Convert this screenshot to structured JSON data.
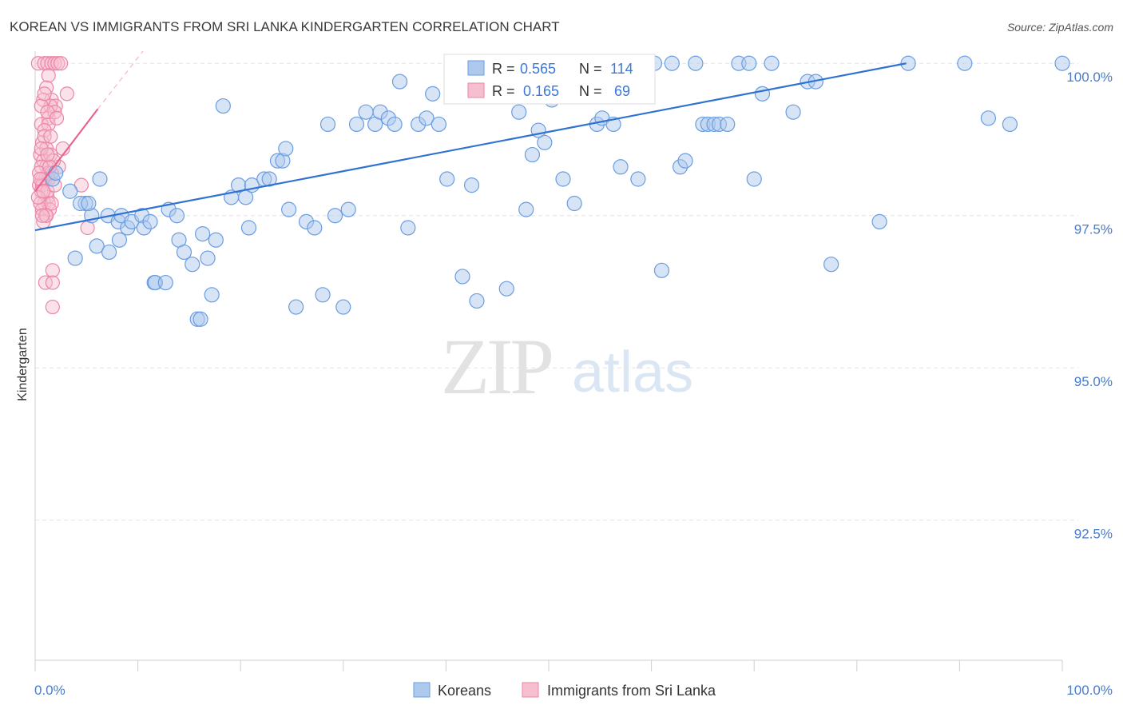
{
  "header": {
    "title": "KOREAN VS IMMIGRANTS FROM SRI LANKA KINDERGARTEN CORRELATION CHART",
    "source": "Source: ZipAtlas.com"
  },
  "watermark": {
    "zip": "ZIP",
    "atlas": "atlas"
  },
  "stats": {
    "r_label": "R =",
    "n_label": "N =",
    "koreans": {
      "r": "0.565",
      "n": "114"
    },
    "srilanka": {
      "r": "0.165",
      "n": "69"
    }
  },
  "legend": {
    "koreans": "Koreans",
    "srilanka": "Immigrants from Sri Lanka"
  },
  "colors": {
    "koreans_fill": "#aec9ee",
    "koreans_stroke": "#6b9de0",
    "koreans_line": "#2f72d2",
    "srilanka_fill": "#f6bfd0",
    "srilanka_stroke": "#ec86a6",
    "srilanka_line": "#e8648e",
    "tick_text": "#4a7cc7",
    "grid": "#e3e3e3"
  },
  "chart_data": {
    "type": "scatter",
    "ylabel": "Kindergarten",
    "xlim": [
      0,
      100
    ],
    "ylim": [
      90.2,
      100.2
    ],
    "y_ticks": [
      {
        "value": 100.0,
        "label": "100.0%"
      },
      {
        "value": 97.5,
        "label": "97.5%"
      },
      {
        "value": 95.0,
        "label": "95.0%"
      },
      {
        "value": 92.5,
        "label": "92.5%"
      }
    ],
    "x_ticks": [
      {
        "value": 0,
        "label": "0.0%"
      },
      {
        "value": 100,
        "label": "100.0%"
      }
    ],
    "x_minor_ticks": [
      0,
      10,
      20,
      30,
      40,
      50,
      60,
      70,
      80,
      90,
      100
    ],
    "series": [
      {
        "name": "Koreans",
        "trend": {
          "x": [
            0,
            84.8
          ],
          "y": [
            97.26,
            100.0
          ]
        },
        "points": [
          [
            1.7,
            98.1
          ],
          [
            2.0,
            98.2
          ],
          [
            3.4,
            97.9
          ],
          [
            4.9,
            97.7
          ],
          [
            3.9,
            96.8
          ],
          [
            4.4,
            97.7
          ],
          [
            5.5,
            97.5
          ],
          [
            5.2,
            97.7
          ],
          [
            6.0,
            97.0
          ],
          [
            6.3,
            98.1
          ],
          [
            7.1,
            97.5
          ],
          [
            7.2,
            96.9
          ],
          [
            8.1,
            97.4
          ],
          [
            8.2,
            97.1
          ],
          [
            8.4,
            97.5
          ],
          [
            9.0,
            97.3
          ],
          [
            9.4,
            97.4
          ],
          [
            10.4,
            97.5
          ],
          [
            10.6,
            97.3
          ],
          [
            11.2,
            97.4
          ],
          [
            11.6,
            96.4
          ],
          [
            11.7,
            96.4
          ],
          [
            12.7,
            96.4
          ],
          [
            13.0,
            97.6
          ],
          [
            13.8,
            97.5
          ],
          [
            14.0,
            97.1
          ],
          [
            14.5,
            96.9
          ],
          [
            15.3,
            96.7
          ],
          [
            15.8,
            95.8
          ],
          [
            16.1,
            95.8
          ],
          [
            16.3,
            97.2
          ],
          [
            16.8,
            96.8
          ],
          [
            17.2,
            96.2
          ],
          [
            17.6,
            97.1
          ],
          [
            18.3,
            99.3
          ],
          [
            19.1,
            97.8
          ],
          [
            19.8,
            98.0
          ],
          [
            20.5,
            97.8
          ],
          [
            20.8,
            97.3
          ],
          [
            21.1,
            98.0
          ],
          [
            22.3,
            98.1
          ],
          [
            22.8,
            98.1
          ],
          [
            23.6,
            98.4
          ],
          [
            24.1,
            98.4
          ],
          [
            24.4,
            98.6
          ],
          [
            24.7,
            97.6
          ],
          [
            25.4,
            96.0
          ],
          [
            26.4,
            97.4
          ],
          [
            27.2,
            97.3
          ],
          [
            28.0,
            96.2
          ],
          [
            28.5,
            99.0
          ],
          [
            29.2,
            97.5
          ],
          [
            30.0,
            96.0
          ],
          [
            30.5,
            97.6
          ],
          [
            31.3,
            99.0
          ],
          [
            32.2,
            99.2
          ],
          [
            33.1,
            99.0
          ],
          [
            33.6,
            99.2
          ],
          [
            34.4,
            99.1
          ],
          [
            35.0,
            99.0
          ],
          [
            35.5,
            99.7
          ],
          [
            36.3,
            97.3
          ],
          [
            37.3,
            99.0
          ],
          [
            38.1,
            99.1
          ],
          [
            38.7,
            99.5
          ],
          [
            39.3,
            99.0
          ],
          [
            40.1,
            98.1
          ],
          [
            41.0,
            100.0
          ],
          [
            41.6,
            96.5
          ],
          [
            42.5,
            98.0
          ],
          [
            43.0,
            96.1
          ],
          [
            44.1,
            99.6
          ],
          [
            44.7,
            100.0
          ],
          [
            45.5,
            100.0
          ],
          [
            45.9,
            96.3
          ],
          [
            46.2,
            100.0
          ],
          [
            47.1,
            99.2
          ],
          [
            47.8,
            97.6
          ],
          [
            48.4,
            98.5
          ],
          [
            49.0,
            98.9
          ],
          [
            49.6,
            98.7
          ],
          [
            50.3,
            99.4
          ],
          [
            51.4,
            98.1
          ],
          [
            52.5,
            97.7
          ],
          [
            53.1,
            100.0
          ],
          [
            53.6,
            100.0
          ],
          [
            54.7,
            99.0
          ],
          [
            55.2,
            99.1
          ],
          [
            56.3,
            99.0
          ],
          [
            57.0,
            98.3
          ],
          [
            58.7,
            98.1
          ],
          [
            60.3,
            100.0
          ],
          [
            61.0,
            96.6
          ],
          [
            62.0,
            100.0
          ],
          [
            62.8,
            98.3
          ],
          [
            63.3,
            98.4
          ],
          [
            64.3,
            100.0
          ],
          [
            65.0,
            99.0
          ],
          [
            65.5,
            99.0
          ],
          [
            66.1,
            99.0
          ],
          [
            66.6,
            99.0
          ],
          [
            67.4,
            99.0
          ],
          [
            68.5,
            100.0
          ],
          [
            69.5,
            100.0
          ],
          [
            70.0,
            98.1
          ],
          [
            70.8,
            99.5
          ],
          [
            71.7,
            100.0
          ],
          [
            73.8,
            99.2
          ],
          [
            75.2,
            99.7
          ],
          [
            76.0,
            99.7
          ],
          [
            77.5,
            96.7
          ],
          [
            82.2,
            97.4
          ],
          [
            92.8,
            99.1
          ],
          [
            94.9,
            99.0
          ],
          [
            85.0,
            100.0
          ],
          [
            90.5,
            100.0
          ],
          [
            100.0,
            100.0
          ]
        ]
      },
      {
        "name": "Immigrants from Sri Lanka",
        "trend": {
          "x": [
            0,
            6.1
          ],
          "y": [
            97.9,
            99.25
          ]
        },
        "trend_ext": {
          "x": [
            6.1,
            10.5
          ],
          "y": [
            99.25,
            100.2
          ]
        },
        "points": [
          [
            0.3,
            100.0
          ],
          [
            0.9,
            100.0
          ],
          [
            1.2,
            100.0
          ],
          [
            1.6,
            100.0
          ],
          [
            1.9,
            100.0
          ],
          [
            2.2,
            100.0
          ],
          [
            2.5,
            100.0
          ],
          [
            1.3,
            99.8
          ],
          [
            1.1,
            99.6
          ],
          [
            3.1,
            99.5
          ],
          [
            1.6,
            99.4
          ],
          [
            2.0,
            99.3
          ],
          [
            1.5,
            99.3
          ],
          [
            0.8,
            99.4
          ],
          [
            1.3,
            99.1
          ],
          [
            1.9,
            99.2
          ],
          [
            0.6,
            99.0
          ],
          [
            1.3,
            99.0
          ],
          [
            0.9,
            98.9
          ],
          [
            0.7,
            98.7
          ],
          [
            1.1,
            98.6
          ],
          [
            2.7,
            98.6
          ],
          [
            0.5,
            98.5
          ],
          [
            0.8,
            98.4
          ],
          [
            1.1,
            98.3
          ],
          [
            2.3,
            98.3
          ],
          [
            0.6,
            98.3
          ],
          [
            1.3,
            98.2
          ],
          [
            1.6,
            98.2
          ],
          [
            0.7,
            98.1
          ],
          [
            1.0,
            98.1
          ],
          [
            1.3,
            98.1
          ],
          [
            0.4,
            98.0
          ],
          [
            0.7,
            98.0
          ],
          [
            1.2,
            97.8
          ],
          [
            4.5,
            98.0
          ],
          [
            0.9,
            97.7
          ],
          [
            1.3,
            97.7
          ],
          [
            0.7,
            97.6
          ],
          [
            1.0,
            97.5
          ],
          [
            0.8,
            97.4
          ],
          [
            1.4,
            97.6
          ],
          [
            0.5,
            97.7
          ],
          [
            5.1,
            97.3
          ],
          [
            0.6,
            97.9
          ],
          [
            1.7,
            96.6
          ],
          [
            1.0,
            96.4
          ],
          [
            1.7,
            96.4
          ],
          [
            1.7,
            96.0
          ],
          [
            0.6,
            99.3
          ],
          [
            1.2,
            99.2
          ],
          [
            0.9,
            98.8
          ],
          [
            1.5,
            98.5
          ],
          [
            0.4,
            98.2
          ],
          [
            1.2,
            97.9
          ],
          [
            0.6,
            98.6
          ],
          [
            1.8,
            98.4
          ],
          [
            0.3,
            97.8
          ],
          [
            1.6,
            97.7
          ],
          [
            2.1,
            99.1
          ],
          [
            0.9,
            99.5
          ],
          [
            1.4,
            98.3
          ],
          [
            0.5,
            98.1
          ],
          [
            1.1,
            97.5
          ],
          [
            1.9,
            98.0
          ],
          [
            0.8,
            97.9
          ],
          [
            1.5,
            98.8
          ],
          [
            0.7,
            97.5
          ],
          [
            1.2,
            98.5
          ]
        ]
      }
    ]
  }
}
